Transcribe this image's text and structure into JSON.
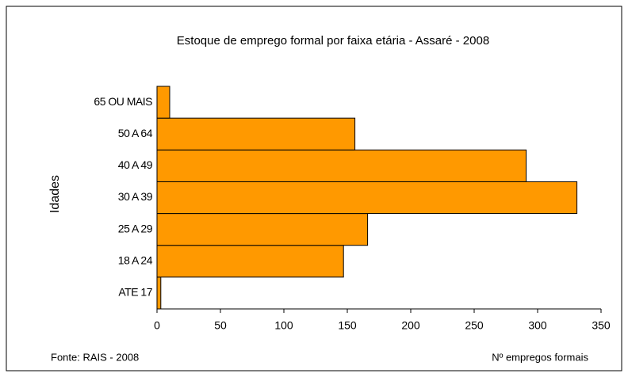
{
  "chart_data": {
    "type": "barh",
    "title": "Estoque de emprego formal por faixa etária - Assaré - 2008",
    "ylabel": "Idades",
    "xlabel": "Nº empregos formais",
    "source": "Fonte: RAIS - 2008",
    "categories": [
      "ATE 17",
      "18 A 24",
      "25 A 29",
      "30 A 39",
      "40 A 49",
      "50 A 64",
      "65 OU MAIS"
    ],
    "values": [
      3,
      147,
      166,
      331,
      291,
      156,
      10
    ],
    "color": "#ff9900",
    "xlim": [
      0,
      350
    ],
    "xticks": [
      0,
      50,
      100,
      150,
      200,
      250,
      300,
      350
    ]
  }
}
